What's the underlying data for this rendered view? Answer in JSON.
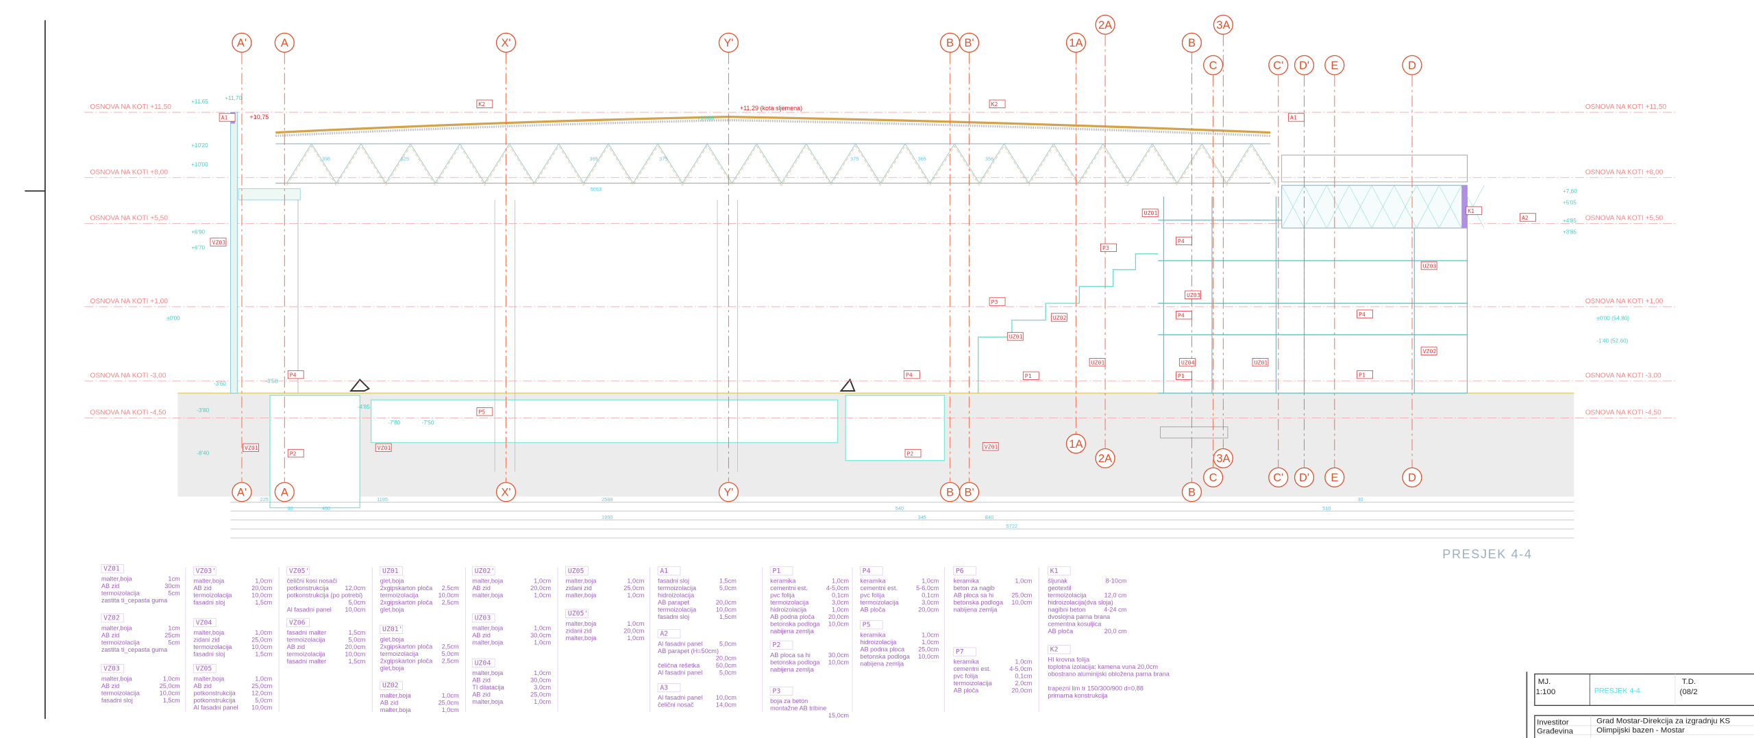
{
  "colors": {
    "axis": "#e0502a",
    "level": "#f08a8a",
    "legend": "#a060c0",
    "dimension": "#5cc8e8",
    "elevation": "#40d0c0",
    "title_accent": "#40e8f0"
  },
  "levels": [
    {
      "label": "OSNOVA NA KOTI +11,50"
    },
    {
      "label": "OSNOVA NA KOTI +8,00"
    },
    {
      "label": "OSNOVA NA KOTI +5,50"
    },
    {
      "label": "OSNOVA NA KOTI +1,00"
    },
    {
      "label": "OSNOVA NA KOTI -3,00"
    },
    {
      "label": "OSNOVA NA KOTI -4,50"
    }
  ],
  "axes_top": [
    "A'",
    "A",
    "X'",
    "Y'",
    "B",
    "B'",
    "1A",
    "2A",
    "B",
    "3A",
    "C",
    "C'",
    "D'",
    "E",
    "D"
  ],
  "axes_bottom": [
    "A'",
    "A",
    "X'",
    "Y'",
    "B",
    "B'",
    "1A",
    "2A",
    "B",
    "3A",
    "C",
    "C'",
    "D'",
    "E",
    "D"
  ],
  "tags": [
    "A1",
    "K2",
    "K2",
    "A1",
    "VZ03",
    "P4",
    "P5",
    "VZ01",
    "P2",
    "VZ01",
    "P4",
    "P2",
    "VZ01",
    "P3",
    "P4",
    "P3",
    "P4",
    "UZ01",
    "UZ03",
    "UZ02",
    "UZ03",
    "UZ01",
    "UZ04",
    "P1",
    "P1",
    "P1",
    "P4",
    "UZ01",
    "VZ02",
    "K1",
    "A2",
    "UZ01"
  ],
  "elevations": {
    "roof_edge": "+10,75",
    "ridge": "+11,29 (kota sljemena)",
    "marks": [
      "+11,65",
      "+11,70",
      "+10'20",
      "+10'00",
      "+6'90",
      "+6'70",
      "+10'85",
      "±0'00",
      "-3'60",
      "-3'50",
      "-3'80",
      "-4'85",
      "-7'50",
      "-8'40",
      "-7'80",
      "+7,60",
      "+5'05",
      "+4'85",
      "+3'85",
      "±0'00 (54,80)",
      "-1'40 (52,60)"
    ]
  },
  "truss_dims": [
    "365",
    "375",
    "375",
    "365",
    "356",
    "398",
    "325",
    "5053"
  ],
  "bottom_dims": [
    "225",
    "30",
    "460",
    "1195",
    "2588",
    "1950",
    "540",
    "345",
    "840",
    "5722",
    "510",
    "30"
  ],
  "section_title": "PRESJEK 4-4",
  "legend": [
    {
      "code": "VZ01",
      "rows": [
        [
          "malter,boja",
          "1cm"
        ],
        [
          "AB zid",
          "30cm"
        ],
        [
          "termoizolacija",
          "5cm"
        ],
        [
          "zastita ti_cepasta guma",
          ""
        ]
      ]
    },
    {
      "code": "VZ02",
      "rows": [
        [
          "malter,boja",
          "1cm"
        ],
        [
          "AB zid",
          "25cm"
        ],
        [
          "termoizolacija",
          "5cm"
        ],
        [
          "zastita ti_cepasta guma",
          ""
        ]
      ]
    },
    {
      "code": "VZ03",
      "rows": [
        [
          "malter,boja",
          "1,0cm"
        ],
        [
          "AB zid",
          "25,0cm"
        ],
        [
          "termoizolacija",
          "10,0cm"
        ],
        [
          "fasadni sloj",
          "1,5cm"
        ]
      ]
    },
    {
      "code": "VZ03'",
      "rows": [
        [
          "malter,boja",
          "1,0cm"
        ],
        [
          "AB zid",
          "20,0cm"
        ],
        [
          "termoizolacija",
          "10,0cm"
        ],
        [
          "fasadni sloj",
          "1,5cm"
        ]
      ]
    },
    {
      "code": "VZ04",
      "rows": [
        [
          "malter,boja",
          "1,0cm"
        ],
        [
          "zidani zid",
          "25,0cm"
        ],
        [
          "termoizolacija",
          "10,0cm"
        ],
        [
          "fasadni sloj",
          "1,5cm"
        ]
      ]
    },
    {
      "code": "VZ05",
      "rows": [
        [
          "malter,boja",
          "1,0cm"
        ],
        [
          "AB zid",
          "25,0cm"
        ],
        [
          "potkonstrukcija",
          "12,0cm"
        ],
        [
          "potkonstrukcija",
          "5,0cm"
        ],
        [
          "Al fasadni panel",
          "10,0cm"
        ]
      ]
    },
    {
      "code": "VZ05'",
      "rows": [
        [
          "čelični kosi nosači",
          ""
        ],
        [
          "potkonstrukcija",
          "12,0cm"
        ],
        [
          "potkonstrukcija (po potrebi)",
          "5,0cm"
        ],
        [
          "Al fasadni panel",
          "10,0cm"
        ]
      ]
    },
    {
      "code": "VZ06",
      "rows": [
        [
          "fasadni malter",
          "1,5cm"
        ],
        [
          "termoizolacija",
          "5,0cm"
        ],
        [
          "AB zid",
          "20,0cm"
        ],
        [
          "termoizolacija",
          "10,0cm"
        ],
        [
          "fasadni malter",
          "1,5cm"
        ]
      ]
    },
    {
      "code": "UZ01",
      "rows": [
        [
          "glet,boja",
          ""
        ],
        [
          "2xgipskarton ploča",
          "2,5cm"
        ],
        [
          "termoizolacija",
          "10,0cm"
        ],
        [
          "2xgipskarton ploča",
          "2,5cm"
        ],
        [
          "glet,boja",
          ""
        ]
      ]
    },
    {
      "code": "UZ01'",
      "rows": [
        [
          "glet,boja",
          ""
        ],
        [
          "2xgipskarton ploča",
          "2,5cm"
        ],
        [
          "termoizolacija",
          "5,0cm"
        ],
        [
          "2xgipskarton ploča",
          "2,5cm"
        ],
        [
          "glet,boja",
          ""
        ]
      ]
    },
    {
      "code": "UZ02",
      "rows": [
        [
          "malter,boja",
          "1,0cm"
        ],
        [
          "AB zid",
          "25,0cm"
        ],
        [
          "malter,boja",
          "1,0cm"
        ]
      ]
    },
    {
      "code": "UZ02'",
      "rows": [
        [
          "malter,boja",
          "1,0cm"
        ],
        [
          "AB zid",
          "20,0cm"
        ],
        [
          "malter,boja",
          "1,0cm"
        ]
      ]
    },
    {
      "code": "UZ03",
      "rows": [
        [
          "malter,boja",
          "1,0cm"
        ],
        [
          "AB zid",
          "30,0cm"
        ],
        [
          "malter,boja",
          "1,0cm"
        ]
      ]
    },
    {
      "code": "UZ04",
      "rows": [
        [
          "malter,boja",
          "1,0cm"
        ],
        [
          "AB zid",
          "30,0cm"
        ],
        [
          "TI dilatacija",
          "3,0cm"
        ],
        [
          "AB zid",
          "25,0cm"
        ],
        [
          "malter,boja",
          "1,0cm"
        ]
      ]
    },
    {
      "code": "UZ05",
      "rows": [
        [
          "malter,boja",
          "1,0cm"
        ],
        [
          "zidani zid",
          "25,0cm"
        ],
        [
          "malter,boja",
          "1,0cm"
        ]
      ]
    },
    {
      "code": "UZ05'",
      "rows": [
        [
          "malter,boja",
          "1,0cm"
        ],
        [
          "zidani zid",
          "20,0cm"
        ],
        [
          "malter,boja",
          "1,0cm"
        ]
      ]
    },
    {
      "code": "A1",
      "rows": [
        [
          "fasadni sloj",
          "1,5cm"
        ],
        [
          "termoizolacija",
          "5,0cm"
        ],
        [
          "hidroizolacija",
          ""
        ],
        [
          "AB parapet",
          "20,0cm"
        ],
        [
          "termoizolacija",
          "10,0cm"
        ],
        [
          "fasadni sloj",
          "1,5cm"
        ]
      ]
    },
    {
      "code": "A2",
      "rows": [
        [
          "Al fasadni panel",
          "5,0cm"
        ],
        [
          "AB parapet (H=50cm)",
          "20,0cm"
        ],
        [
          "čelična rešetka",
          "50,0cm"
        ],
        [
          "Al fasadni panel",
          "5,0cm"
        ]
      ]
    },
    {
      "code": "A3",
      "rows": [
        [
          "Al fasadni panel",
          "10,0cm"
        ],
        [
          "čelični nosač",
          "14,0cm"
        ]
      ]
    },
    {
      "code": "P1",
      "rows": [
        [
          "keramika",
          "1,0cm"
        ],
        [
          "cementni est.",
          "4-5,0cm"
        ],
        [
          "pvc folija",
          "0,1cm"
        ],
        [
          "termoizolacija",
          "3,0cm"
        ],
        [
          "hidroizolacija",
          "1,0cm"
        ],
        [
          "AB podna ploča",
          "20,0cm"
        ],
        [
          "betonska podloga",
          "10,0cm"
        ],
        [
          "nabijena zemlja",
          ""
        ]
      ]
    },
    {
      "code": "P2",
      "rows": [
        [
          "AB ploca sa hi",
          "30,0cm"
        ],
        [
          "betonska podloga",
          "10,0cm"
        ],
        [
          "nabijena zemlja",
          ""
        ]
      ]
    },
    {
      "code": "P3",
      "rows": [
        [
          "boja za beton",
          ""
        ],
        [
          "montažne AB tribine",
          "15,0cm"
        ]
      ]
    },
    {
      "code": "P4",
      "rows": [
        [
          "keramika",
          "1,0cm"
        ],
        [
          "cementni est.",
          "5-6,0cm"
        ],
        [
          "pvc folija",
          "0,1cm"
        ],
        [
          "termoizolacija",
          "3,0cm"
        ],
        [
          "AB ploča",
          "20,0cm"
        ]
      ]
    },
    {
      "code": "P5",
      "rows": [
        [
          "keramika",
          "1,0cm"
        ],
        [
          "hidroizolacija",
          "1,0cm"
        ],
        [
          "AB podna ploca",
          "25,0cm"
        ],
        [
          "betonska podloga",
          "10,0cm"
        ],
        [
          "nabijena zemlja",
          ""
        ]
      ]
    },
    {
      "code": "P6",
      "rows": [
        [
          "keramika",
          "1,0cm"
        ],
        [
          "beton za nagib",
          ""
        ],
        [
          "AB ploca sa hi",
          "25,0cm"
        ],
        [
          "betonska podloga",
          "10,0cm"
        ],
        [
          "nabijena zemlja",
          ""
        ]
      ]
    },
    {
      "code": "P7",
      "rows": [
        [
          "keramika",
          "1,0cm"
        ],
        [
          "cementni est.",
          "4-5,0cm"
        ],
        [
          "pvc folija",
          "0,1cm"
        ],
        [
          "termoizolacija",
          "2,0cm"
        ],
        [
          "AB ploča",
          "20,0cm"
        ]
      ]
    },
    {
      "code": "K1",
      "rows": [
        [
          "šljunak",
          "8-10cm"
        ],
        [
          "geotextil",
          ""
        ],
        [
          "termoizolacija",
          "12,0 cm"
        ],
        [
          "hidroizolacija(dva sloja)",
          ""
        ],
        [
          "nagibni beton",
          "4-24 cm"
        ],
        [
          "dvoslojna parna brana",
          ""
        ],
        [
          "cementna kosuljica",
          ""
        ],
        [
          "AB ploča",
          "20,0 cm"
        ]
      ]
    },
    {
      "code": "K2",
      "rows": [
        [
          "HI krovna folija",
          ""
        ],
        [
          "toplotna izolacija: kamena vuna 20,0cm",
          ""
        ],
        [
          "obostrano aluminijski obložena parna brana",
          ""
        ],
        [
          "",
          ""
        ],
        [
          "trapezni lim tr 150/300/900 d=0,88",
          ""
        ],
        [
          "primarna konstrukcija",
          ""
        ]
      ]
    }
  ],
  "title_block": {
    "scale_label": "MJ.",
    "scale": "1:100",
    "drawing": "PRESJEK 4-4",
    "td_label": "T.D.",
    "td_value": "(08/2",
    "investor_label": "Investitor",
    "investor": "Grad Mostar-Direkcija za izgradnju KS",
    "building_label": "Građevina",
    "building": "Olimpijski bazen - Mostar"
  }
}
